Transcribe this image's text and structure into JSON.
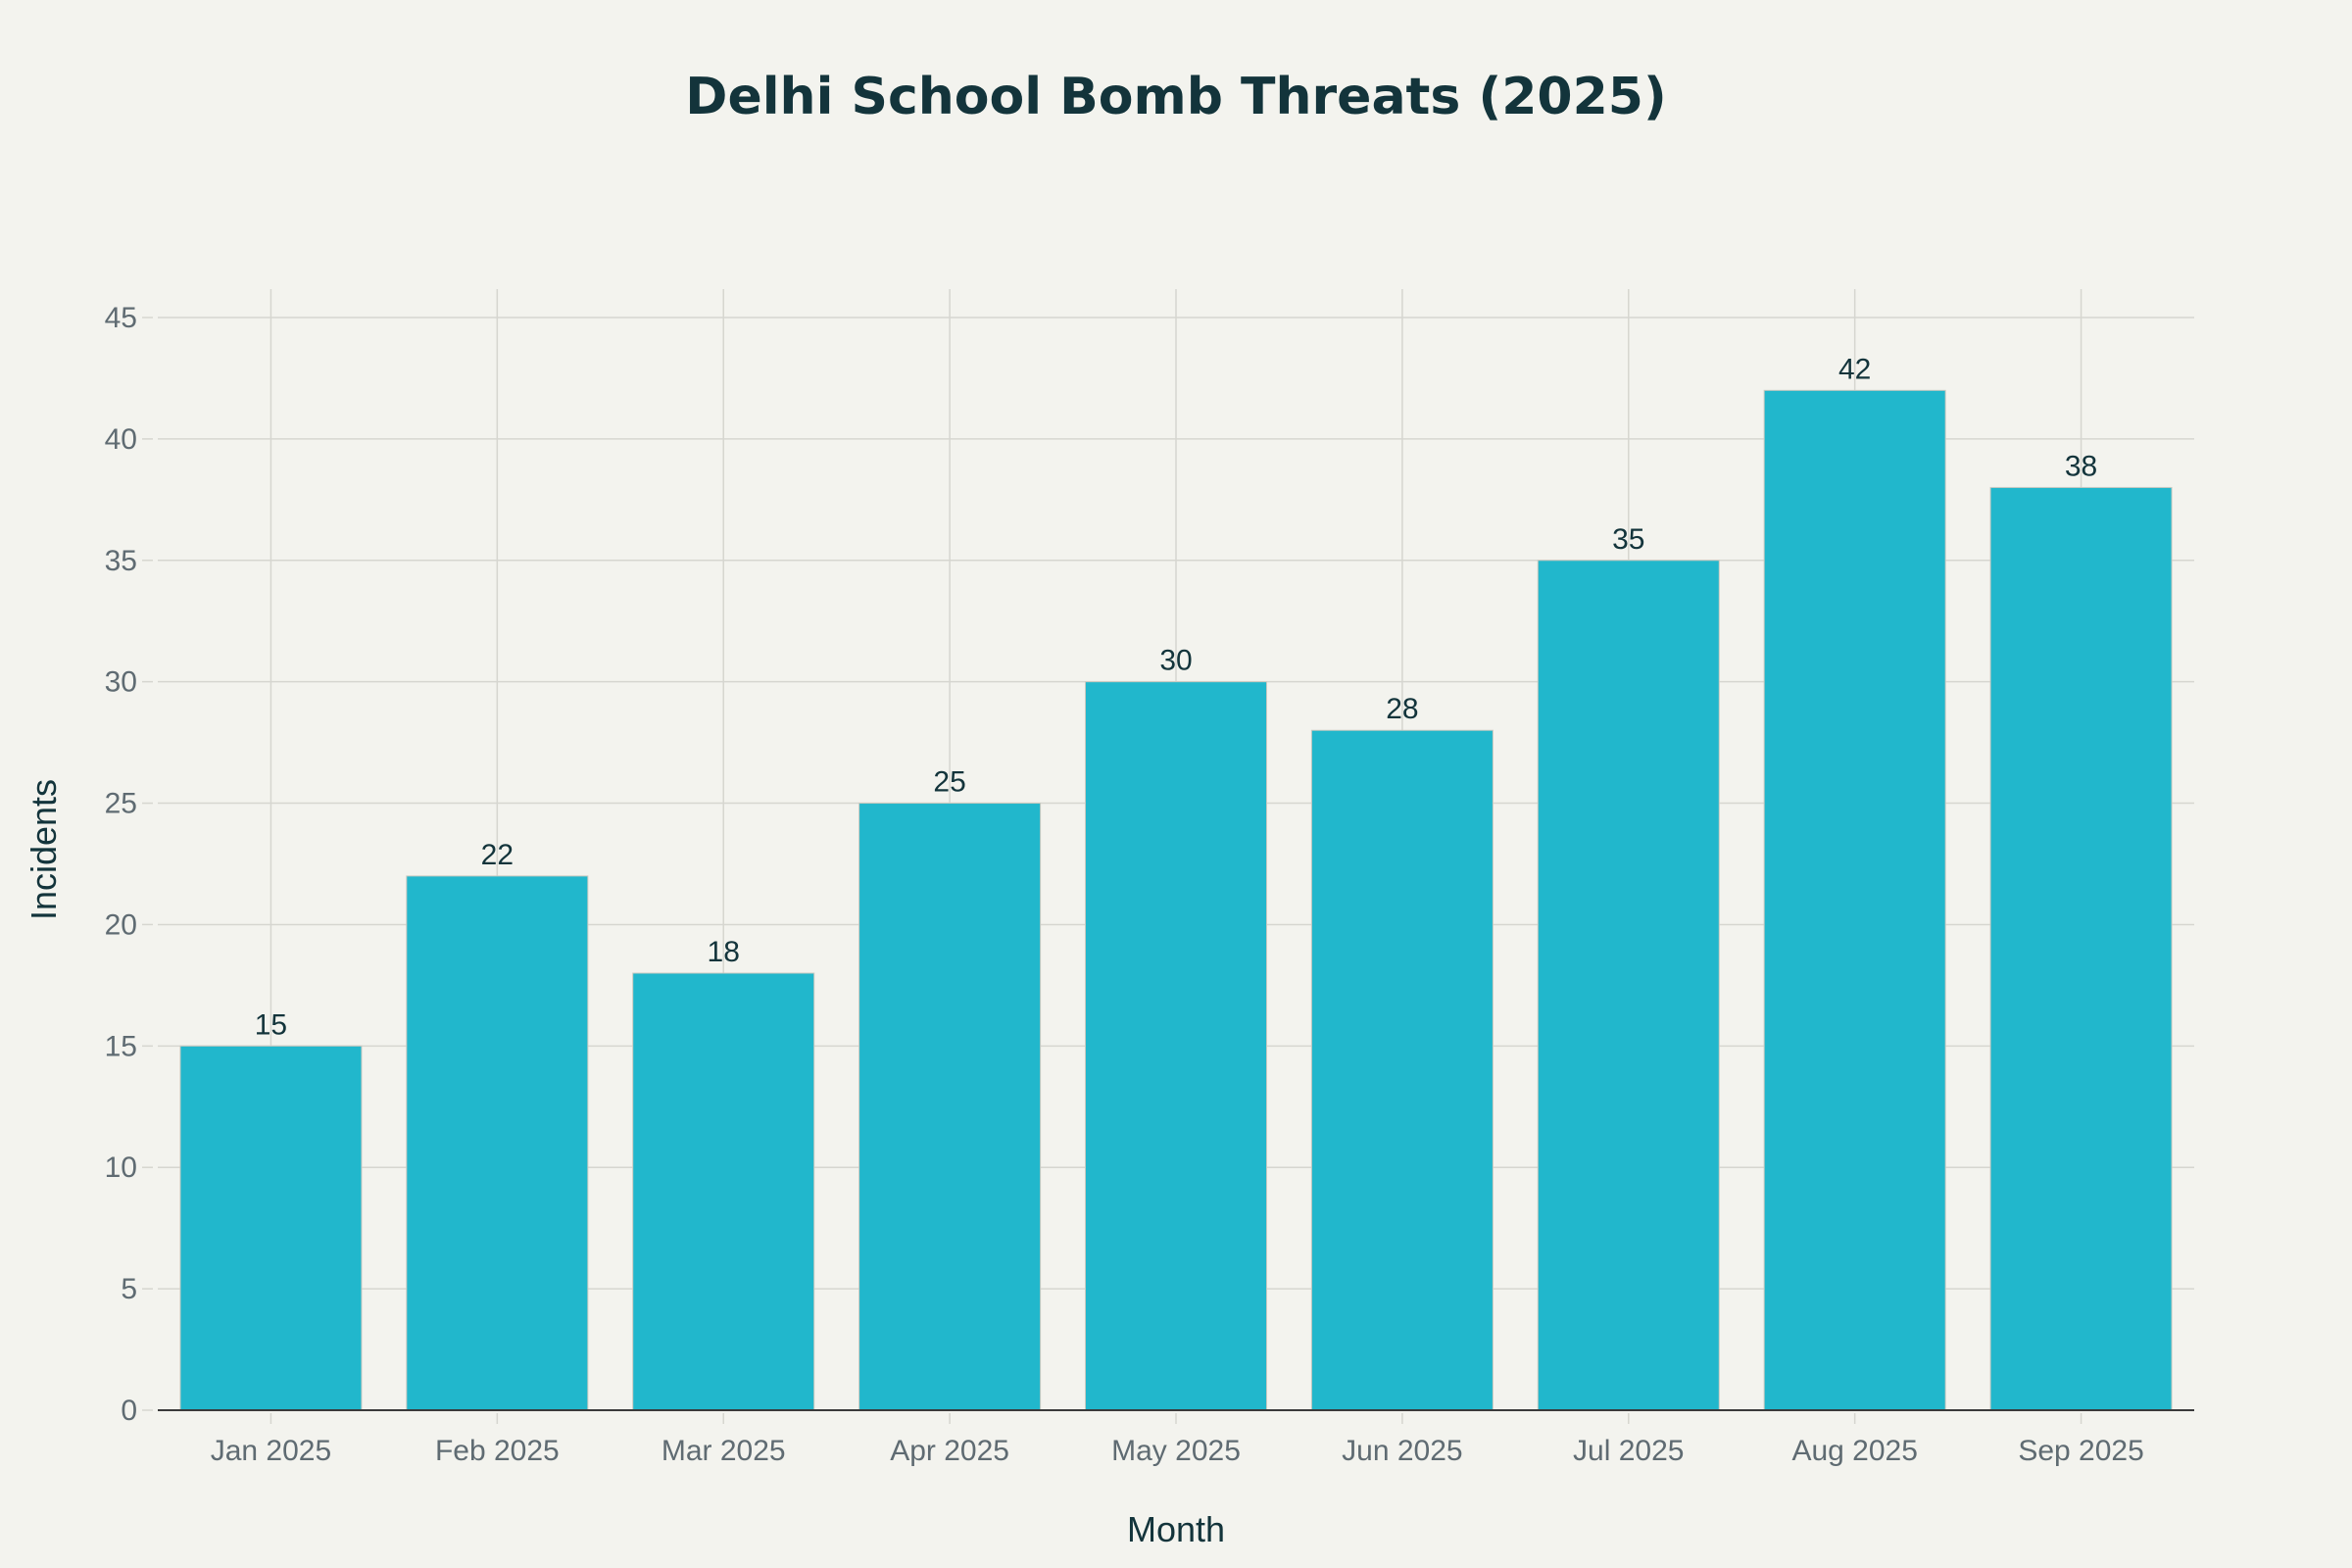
{
  "chart_data": {
    "type": "bar",
    "title": "Delhi School Bomb Threats (2025)",
    "xlabel": "Month",
    "ylabel": "Incidents",
    "categories": [
      "Jan 2025",
      "Feb 2025",
      "Mar 2025",
      "Apr 2025",
      "May 2025",
      "Jun 2025",
      "Jul 2025",
      "Aug 2025",
      "Sep 2025"
    ],
    "values": [
      15,
      22,
      18,
      25,
      30,
      28,
      35,
      42,
      38
    ],
    "ylim": [
      0,
      46.2
    ],
    "yticks": [
      0,
      5,
      10,
      15,
      20,
      25,
      30,
      35,
      40,
      45
    ],
    "grid": true,
    "data_labels": true,
    "colors": {
      "bar": "#21b7cc",
      "background": "#f3f3ee",
      "title": "#13343b",
      "tick": "#5f6b72",
      "grid": "#d6d6d0"
    }
  }
}
